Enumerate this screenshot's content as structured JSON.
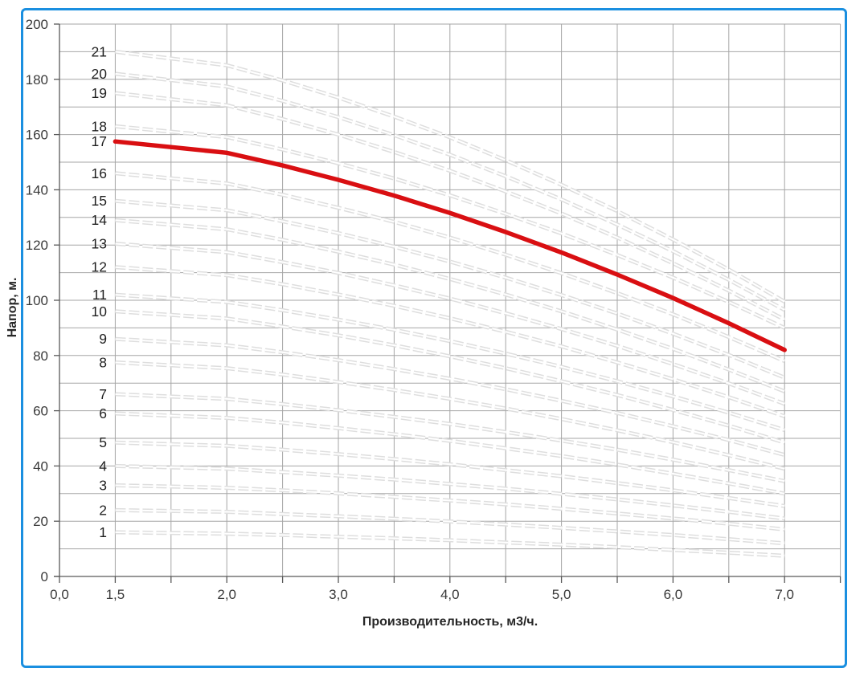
{
  "window": {
    "background": "#ffffff",
    "border_color": "#1a8fe0"
  },
  "chart_data": {
    "type": "line",
    "title": "",
    "xlabel": "Производительность, м3/ч.",
    "ylabel": "Напор, м.",
    "x": [
      1.5,
      2.0,
      2.5,
      3.0,
      3.5,
      4.0,
      4.5,
      5.0,
      5.5,
      6.0,
      6.5,
      7.0
    ],
    "xlim_categories": 14,
    "ylim": [
      0,
      200
    ],
    "y_major_step": 20,
    "y_minor_step": 10,
    "grid": true,
    "legend": "none",
    "y_tick_labels": [
      "0",
      "20",
      "40",
      "60",
      "80",
      "100",
      "120",
      "140",
      "160",
      "180",
      "200"
    ],
    "x_tick_labels": [
      "0,0",
      "1,5",
      "2,0",
      "3,0",
      "4,0",
      "5,0",
      "6,0",
      "7,0"
    ],
    "x_tick_gridline_index": [
      0,
      1,
      3,
      5,
      7,
      9,
      11,
      13
    ],
    "highlight_series": "17",
    "colors": {
      "curve": "#dedede",
      "curve_core": "#ffffff",
      "highlight": "#d90f12",
      "grid": "#a6a6a6",
      "axis": "#595959",
      "tick_label": "#3a3a3a",
      "curve_label": "#1f1f1f"
    },
    "series": [
      {
        "name": "1",
        "values": [
          16,
          15.5,
          15,
          14.4,
          13.8,
          13.1,
          12.3,
          11.5,
          10.6,
          9.6,
          8.6,
          7.5
        ]
      },
      {
        "name": "2",
        "values": [
          24,
          23.4,
          22.6,
          21.8,
          20.9,
          19.9,
          18.8,
          17.6,
          16.3,
          15,
          13.5,
          12
        ]
      },
      {
        "name": "3",
        "values": [
          33,
          32.1,
          31.2,
          30.1,
          28.8,
          27.5,
          26.1,
          24.5,
          22.8,
          21,
          19.1,
          17
        ]
      },
      {
        "name": "4",
        "values": [
          40,
          39,
          37.8,
          36.5,
          35.1,
          33.5,
          31.8,
          29.9,
          27.9,
          25.7,
          23.4,
          21
        ]
      },
      {
        "name": "5",
        "values": [
          48.5,
          47.3,
          45.9,
          44.3,
          42.5,
          40.6,
          38.5,
          36.3,
          33.8,
          31.2,
          28.4,
          25.5
        ]
      },
      {
        "name": "6",
        "values": [
          59,
          57.4,
          55.7,
          53.7,
          51.5,
          49.1,
          46.4,
          43.6,
          40.5,
          37.2,
          33.7,
          30
        ]
      },
      {
        "name": "7",
        "values": [
          66,
          64.3,
          62.4,
          60.2,
          57.8,
          55.2,
          52.3,
          49.2,
          45.9,
          42.3,
          38.5,
          34.5
        ]
      },
      {
        "name": "8",
        "values": [
          77.5,
          75.4,
          73.1,
          70.4,
          67.5,
          64.3,
          60.8,
          57,
          52.9,
          48.6,
          43.9,
          39
        ]
      },
      {
        "name": "9",
        "values": [
          86,
          83.7,
          81.2,
          78.3,
          75.1,
          71.6,
          67.8,
          63.6,
          59.2,
          54.4,
          49.4,
          44
        ]
      },
      {
        "name": "10",
        "values": [
          96,
          93.4,
          90.5,
          87.3,
          83.7,
          79.7,
          75.4,
          70.7,
          65.7,
          60.3,
          54.6,
          48.5
        ]
      },
      {
        "name": "11",
        "values": [
          102,
          99.4,
          96.4,
          93,
          89.3,
          85.2,
          80.7,
          75.9,
          70.7,
          65.2,
          59.3,
          53
        ]
      },
      {
        "name": "12",
        "values": [
          112,
          109.1,
          105.8,
          102.1,
          98,
          93.5,
          88.6,
          83.3,
          77.5,
          71.4,
          64.9,
          58
        ]
      },
      {
        "name": "13",
        "values": [
          120.5,
          117.4,
          113.8,
          109.9,
          105.4,
          100.6,
          95.3,
          89.6,
          83.5,
          76.9,
          69.9,
          62.5
        ]
      },
      {
        "name": "14",
        "values": [
          129,
          125.7,
          121.9,
          117.6,
          112.9,
          107.7,
          102.1,
          96,
          89.4,
          82.4,
          74.9,
          67
        ]
      },
      {
        "name": "15",
        "values": [
          136,
          132.6,
          128.6,
          124.3,
          119.4,
          114,
          108.2,
          101.9,
          95.2,
          87.9,
          80.2,
          72
        ]
      },
      {
        "name": "16",
        "values": [
          146,
          142.3,
          138.2,
          133.5,
          128.4,
          122.7,
          116.5,
          109.8,
          102.6,
          94.9,
          86.7,
          78
        ]
      },
      {
        "name": "17",
        "values": [
          157.5,
          153.4,
          148.8,
          143.6,
          137.9,
          131.6,
          124.7,
          117.3,
          109.3,
          100.8,
          91.7,
          82
        ]
      },
      {
        "name": "18",
        "values": [
          163,
          159.1,
          154.6,
          149.6,
          144.1,
          138,
          131.3,
          124.2,
          116.4,
          108.2,
          99.4,
          90
        ]
      },
      {
        "name": "19",
        "values": [
          175,
          170.6,
          165.6,
          160,
          153.7,
          146.9,
          139.4,
          131.4,
          122.7,
          113.4,
          103.5,
          93
        ]
      },
      {
        "name": "20",
        "values": [
          182,
          177.4,
          172.2,
          166.3,
          159.8,
          152.7,
          144.9,
          136.5,
          127.4,
          117.8,
          107.4,
          96.5
        ]
      },
      {
        "name": "21",
        "values": [
          190,
          185.1,
          179.6,
          173.4,
          166.5,
          159,
          150.7,
          141.8,
          132.3,
          122,
          111.1,
          99.5
        ]
      }
    ]
  }
}
